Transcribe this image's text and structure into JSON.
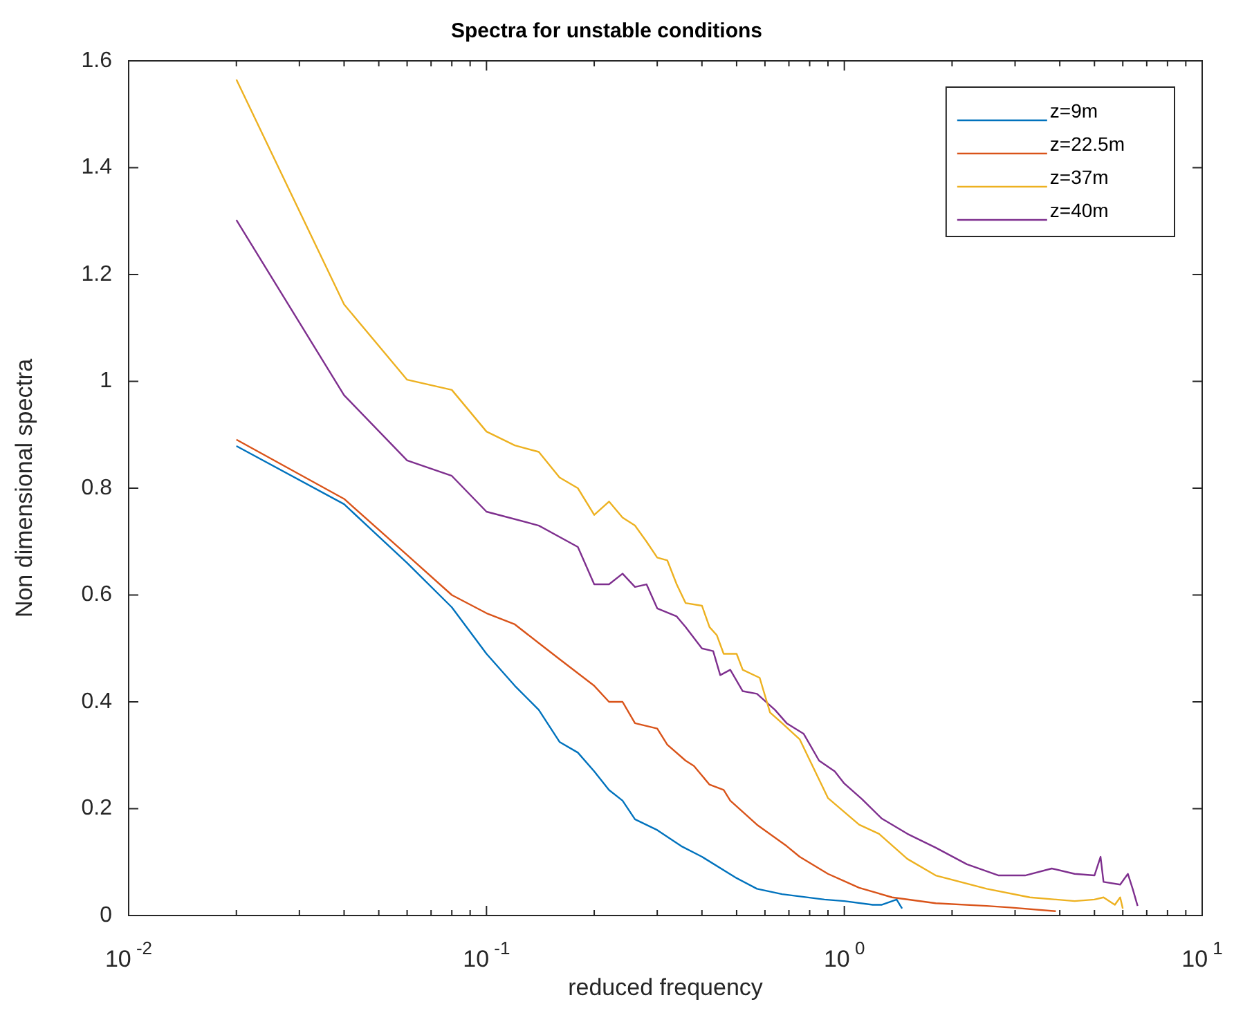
{
  "chart_data": {
    "type": "line",
    "title": "Spectra for unstable conditions",
    "xlabel": "reduced frequency",
    "ylabel": "Non dimensional spectra",
    "log": "x",
    "xlim": [
      0.01,
      10
    ],
    "xticks": [
      {
        "value": 0.01,
        "label": "10$^{-2}$"
      },
      {
        "value": 0.02,
        "label": null
      },
      {
        "value": 0.03,
        "label": null
      },
      {
        "value": 0.04,
        "label": null
      },
      {
        "value": 0.05,
        "label": null
      },
      {
        "value": 0.06,
        "label": null
      },
      {
        "value": 0.07,
        "label": null
      },
      {
        "value": 0.08,
        "label": null
      },
      {
        "value": 0.09,
        "label": null
      },
      {
        "value": 0.1,
        "label": "10$^{-1}$"
      },
      {
        "value": 0.2,
        "label": null
      },
      {
        "value": 0.3,
        "label": null
      },
      {
        "value": 0.4,
        "label": null
      },
      {
        "value": 0.5,
        "label": null
      },
      {
        "value": 0.6,
        "label": null
      },
      {
        "value": 0.7,
        "label": null
      },
      {
        "value": 0.8,
        "label": null
      },
      {
        "value": 0.9,
        "label": null
      },
      {
        "value": 1,
        "label": "10$^{0}$"
      },
      {
        "value": 2,
        "label": null
      },
      {
        "value": 3,
        "label": null
      },
      {
        "value": 4,
        "label": null
      },
      {
        "value": 5,
        "label": null
      },
      {
        "value": 6,
        "label": null
      },
      {
        "value": 7,
        "label": null
      },
      {
        "value": 8,
        "label": null
      },
      {
        "value": 9,
        "label": null
      },
      {
        "value": 10,
        "label": "10$^{1}$"
      }
    ],
    "ylim": [
      0,
      1.6
    ],
    "yticks": [
      0,
      0.2,
      0.4,
      0.6,
      0.8,
      1,
      1.2,
      1.4,
      1.6
    ],
    "grid": false,
    "legend": "top right",
    "series": [
      {
        "name": "z=9m",
        "color": "#0072bd",
        "x": [
          0.02,
          0.04,
          0.06,
          0.08,
          0.1,
          0.12,
          0.14,
          0.16,
          0.18,
          0.2,
          0.22,
          0.24,
          0.26,
          0.3,
          0.35,
          0.4,
          0.5,
          0.57,
          0.67,
          0.88,
          1.0,
          1.2,
          1.27,
          1.4,
          1.45
        ],
        "values": [
          0.879,
          0.77,
          0.66,
          0.577,
          0.49,
          0.43,
          0.385,
          0.325,
          0.305,
          0.27,
          0.235,
          0.215,
          0.18,
          0.16,
          0.13,
          0.11,
          0.07,
          0.05,
          0.04,
          0.03,
          0.027,
          0.02,
          0.02,
          0.03,
          0.013
        ]
      },
      {
        "name": "z=22.5m",
        "color": "#d95319",
        "x": [
          0.02,
          0.04,
          0.06,
          0.08,
          0.1,
          0.12,
          0.14,
          0.16,
          0.2,
          0.22,
          0.24,
          0.26,
          0.3,
          0.32,
          0.36,
          0.38,
          0.42,
          0.46,
          0.48,
          0.57,
          0.69,
          0.75,
          0.9,
          1.1,
          1.36,
          1.8,
          2.5,
          2.9,
          3.9
        ],
        "values": [
          0.891,
          0.78,
          0.675,
          0.6,
          0.566,
          0.545,
          0.51,
          0.48,
          0.43,
          0.4,
          0.4,
          0.36,
          0.35,
          0.32,
          0.29,
          0.28,
          0.245,
          0.235,
          0.215,
          0.17,
          0.13,
          0.11,
          0.078,
          0.052,
          0.034,
          0.023,
          0.018,
          0.015,
          0.008
        ]
      },
      {
        "name": "z=37m",
        "color": "#edb120",
        "x": [
          0.02,
          0.04,
          0.06,
          0.08,
          0.1,
          0.12,
          0.14,
          0.16,
          0.18,
          0.2,
          0.22,
          0.24,
          0.26,
          0.28,
          0.3,
          0.32,
          0.34,
          0.36,
          0.4,
          0.42,
          0.44,
          0.46,
          0.5,
          0.52,
          0.58,
          0.62,
          0.67,
          0.75,
          0.9,
          1.1,
          1.25,
          1.5,
          1.8,
          2.5,
          3.3,
          4.4,
          5,
          5.3,
          5.7,
          5.9,
          6
        ],
        "values": [
          1.565,
          1.144,
          1.003,
          0.984,
          0.906,
          0.88,
          0.868,
          0.82,
          0.8,
          0.75,
          0.775,
          0.745,
          0.73,
          0.7,
          0.67,
          0.665,
          0.62,
          0.585,
          0.58,
          0.54,
          0.525,
          0.49,
          0.49,
          0.46,
          0.445,
          0.38,
          0.36,
          0.33,
          0.22,
          0.17,
          0.153,
          0.106,
          0.075,
          0.05,
          0.034,
          0.027,
          0.03,
          0.034,
          0.02,
          0.034,
          0.013
        ]
      },
      {
        "name": "z=40m",
        "color": "#7e2f8e",
        "x": [
          0.02,
          0.04,
          0.06,
          0.08,
          0.1,
          0.14,
          0.18,
          0.2,
          0.22,
          0.24,
          0.26,
          0.28,
          0.3,
          0.34,
          0.36,
          0.4,
          0.43,
          0.45,
          0.48,
          0.52,
          0.57,
          0.64,
          0.69,
          0.77,
          0.85,
          0.94,
          1.0,
          1.12,
          1.27,
          1.5,
          1.8,
          2.2,
          2.7,
          3.2,
          3.8,
          4.4,
          5,
          5.2,
          5.3,
          5.9,
          6.2,
          6.4,
          6.6
        ],
        "values": [
          1.302,
          0.974,
          0.852,
          0.823,
          0.756,
          0.73,
          0.69,
          0.62,
          0.62,
          0.64,
          0.615,
          0.62,
          0.575,
          0.56,
          0.54,
          0.5,
          0.495,
          0.45,
          0.46,
          0.42,
          0.415,
          0.385,
          0.36,
          0.34,
          0.29,
          0.27,
          0.247,
          0.218,
          0.182,
          0.153,
          0.127,
          0.096,
          0.075,
          0.075,
          0.088,
          0.078,
          0.075,
          0.11,
          0.063,
          0.058,
          0.078,
          0.049,
          0.018
        ]
      }
    ]
  }
}
